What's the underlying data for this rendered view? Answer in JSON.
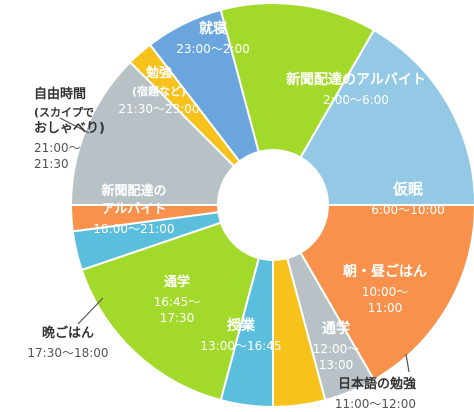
{
  "chart_data": {
    "type": "pie",
    "clock_hours": 24,
    "segments": [
      {
        "lines": [
          "新聞配達のアルバイト"
        ],
        "time": "2:00〜6:00",
        "start": 2,
        "end": 6,
        "color": "#94c9e6"
      },
      {
        "lines": [
          "仮眠"
        ],
        "time": "6:00〜10:00",
        "start": 6,
        "end": 10,
        "color": "#f7914c"
      },
      {
        "lines": [
          "朝・昼ごはん"
        ],
        "time_lines": [
          "10:00〜",
          "11:00"
        ],
        "start": 10,
        "end": 11,
        "color": "#b8c2c6"
      },
      {
        "lines": [
          "日本語の勉強"
        ],
        "time": "11:00〜12:00",
        "start": 11,
        "end": 12,
        "color": "#f8c21d"
      },
      {
        "lines": [
          "通学"
        ],
        "time_lines": [
          "12:00〜",
          "13:00"
        ],
        "start": 12,
        "end": 13,
        "color": "#5abedc"
      },
      {
        "lines": [
          "授業"
        ],
        "time": "13:00〜16:45",
        "start": 13,
        "end": 16.75,
        "color": "#a3d92b"
      },
      {
        "lines": [
          "通学"
        ],
        "time_lines": [
          "16:45〜",
          "17:30"
        ],
        "start": 16.75,
        "end": 17.5,
        "color": "#5abedc"
      },
      {
        "lines": [
          "晩ごはん"
        ],
        "time": "17:30〜18:00",
        "start": 17.5,
        "end": 18,
        "color": "#f7914c"
      },
      {
        "lines": [
          "新聞配達の",
          "アルバイト"
        ],
        "time": "18:00〜21:00",
        "start": 18,
        "end": 21,
        "color": "#b8c2c6"
      },
      {
        "lines": [
          "自由時間",
          "(スカイプで",
          "おしゃべり)"
        ],
        "time_lines": [
          "21:00〜",
          "21:30"
        ],
        "start": 21,
        "end": 21.5,
        "color": "#f8c21d"
      },
      {
        "lines": [
          "勉強",
          "(宿題など)"
        ],
        "time": "21:30〜23:00",
        "start": 21.5,
        "end": 23,
        "color": "#6aa5de"
      },
      {
        "lines": [
          "就寝"
        ],
        "time": "23:00〜2:00",
        "start": 23,
        "end": 26,
        "color": "#a3d92b"
      }
    ]
  }
}
